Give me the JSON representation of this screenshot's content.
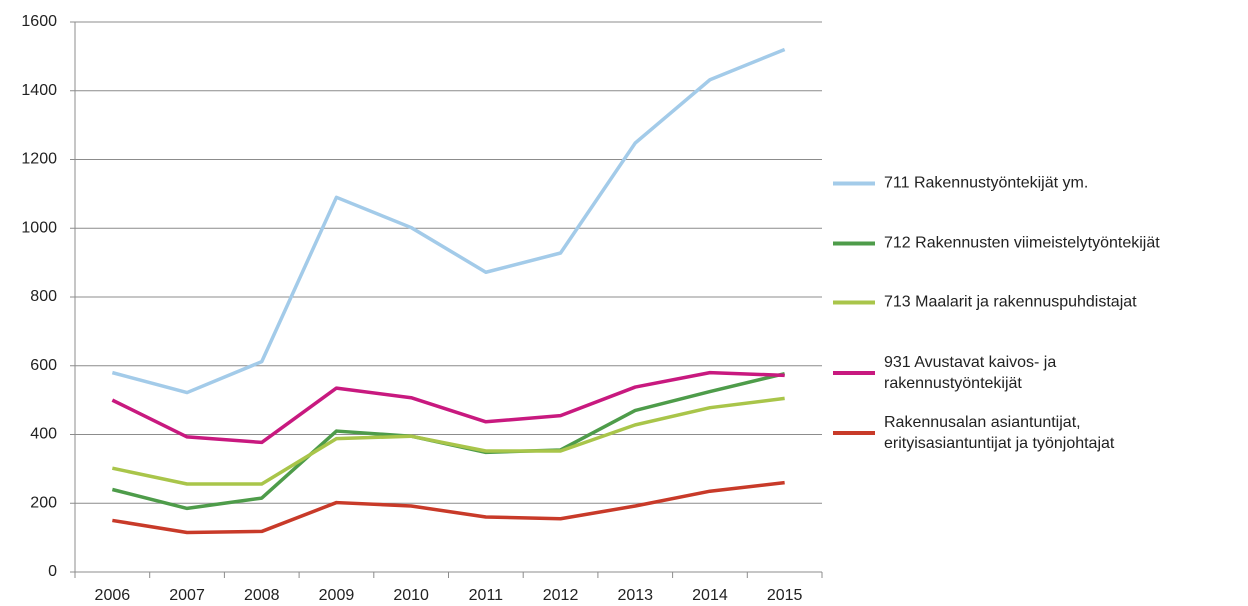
{
  "chart_data": {
    "type": "line",
    "categories": [
      "2006",
      "2007",
      "2008",
      "2009",
      "2010",
      "2011",
      "2012",
      "2013",
      "2014",
      "2015"
    ],
    "series": [
      {
        "name": "711 Rakennustyöntekijät ym.",
        "color": "#a3cbe9",
        "values": [
          580,
          522,
          612,
          1090,
          1002,
          872,
          928,
          1248,
          1432,
          1520
        ]
      },
      {
        "name": "712 Rakennusten viimeistelytyöntekijät",
        "color": "#4e9c4a",
        "values": [
          240,
          185,
          215,
          410,
          395,
          348,
          355,
          470,
          525,
          577
        ]
      },
      {
        "name": "713 Maalarit ja rakennuspuhdistajat",
        "color": "#a9c54a",
        "values": [
          302,
          256,
          256,
          388,
          395,
          352,
          352,
          428,
          478,
          505
        ]
      },
      {
        "name": "931 Avustavat kaivos- ja\nrakennustyöntekijät",
        "color": "#c8197f",
        "values": [
          500,
          393,
          377,
          535,
          507,
          437,
          455,
          538,
          580,
          572
        ]
      },
      {
        "name": "Rakennusalan asiantuntijat,\nerityisasiantuntijat ja työnjohtajat",
        "color": "#c83a29",
        "values": [
          150,
          115,
          118,
          202,
          192,
          160,
          155,
          192,
          235,
          260
        ]
      }
    ],
    "ylim": [
      0,
      1600
    ],
    "yticks": [
      0,
      200,
      400,
      600,
      800,
      1000,
      1200,
      1400,
      1600
    ],
    "grid": true,
    "legend": "right"
  }
}
